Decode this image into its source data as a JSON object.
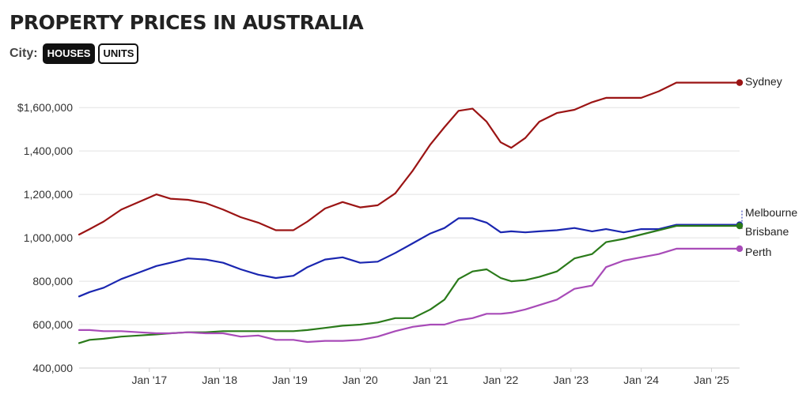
{
  "header": {
    "title": "PROPERTY PRICES IN AUSTRALIA",
    "filter_label": "City:",
    "buttons": [
      {
        "label": "HOUSES",
        "active": true
      },
      {
        "label": "UNITS",
        "active": false
      }
    ]
  },
  "chart_data": {
    "type": "line",
    "title": "PROPERTY PRICES IN AUSTRALIA",
    "xlabel": "",
    "ylabel": "",
    "ylim": [
      400000,
      1750000
    ],
    "y_ticks": [
      400000,
      600000,
      800000,
      1000000,
      1200000,
      1400000,
      1600000
    ],
    "y_tick_labels": [
      "400,000",
      "600,000",
      "800,000",
      "1,000,000",
      "1,200,000",
      "1,400,000",
      "$1,600,000"
    ],
    "x_ticks": [
      2017,
      2018,
      2019,
      2020,
      2021,
      2022,
      2023,
      2024,
      2025
    ],
    "x_tick_labels": [
      "Jan '17",
      "Jan '18",
      "Jan '19",
      "Jan '20",
      "Jan '21",
      "Jan '22",
      "Jan '23",
      "Jan '24",
      "Jan '25"
    ],
    "grid": true,
    "x": [
      2016.0,
      2016.15,
      2016.35,
      2016.6,
      2016.85,
      2017.1,
      2017.3,
      2017.55,
      2017.8,
      2018.05,
      2018.3,
      2018.55,
      2018.8,
      2019.05,
      2019.25,
      2019.5,
      2019.75,
      2020.0,
      2020.25,
      2020.5,
      2020.75,
      2021.0,
      2021.2,
      2021.4,
      2021.6,
      2021.8,
      2022.0,
      2022.15,
      2022.35,
      2022.55,
      2022.8,
      2023.05,
      2023.3,
      2023.5,
      2023.75,
      2024.0,
      2024.25,
      2024.5,
      2024.75,
      2025.0,
      2025.25,
      2025.4
    ],
    "series": [
      {
        "name": "Sydney",
        "color": "#9b1414",
        "values": [
          1015000,
          1040000,
          1075000,
          1130000,
          1165000,
          1200000,
          1180000,
          1175000,
          1160000,
          1130000,
          1095000,
          1070000,
          1035000,
          1035000,
          1075000,
          1135000,
          1165000,
          1140000,
          1150000,
          1205000,
          1310000,
          1430000,
          1510000,
          1585000,
          1595000,
          1535000,
          1440000,
          1415000,
          1460000,
          1535000,
          1575000,
          1590000,
          1625000,
          1645000,
          1645000,
          1645000,
          1675000,
          1715000,
          1715000,
          1715000,
          1715000,
          1715000
        ]
      },
      {
        "name": "Melbourne",
        "color": "#1a26b0",
        "values": [
          730000,
          750000,
          770000,
          810000,
          840000,
          870000,
          885000,
          905000,
          900000,
          885000,
          855000,
          830000,
          815000,
          825000,
          865000,
          900000,
          910000,
          885000,
          890000,
          930000,
          975000,
          1020000,
          1045000,
          1090000,
          1090000,
          1070000,
          1025000,
          1030000,
          1025000,
          1030000,
          1035000,
          1045000,
          1030000,
          1040000,
          1025000,
          1040000,
          1040000,
          1060000,
          1060000,
          1060000,
          1060000,
          1060000
        ]
      },
      {
        "name": "Brisbane",
        "color": "#2a7a1a",
        "values": [
          515000,
          530000,
          535000,
          545000,
          550000,
          555000,
          560000,
          565000,
          565000,
          570000,
          570000,
          570000,
          570000,
          570000,
          575000,
          585000,
          595000,
          600000,
          610000,
          630000,
          630000,
          670000,
          715000,
          810000,
          845000,
          855000,
          815000,
          800000,
          805000,
          820000,
          845000,
          905000,
          925000,
          980000,
          995000,
          1015000,
          1035000,
          1055000,
          1055000,
          1055000,
          1055000,
          1055000
        ]
      },
      {
        "name": "Perth",
        "color": "#a84bb8",
        "values": [
          575000,
          575000,
          570000,
          570000,
          565000,
          560000,
          560000,
          565000,
          560000,
          560000,
          545000,
          550000,
          530000,
          530000,
          520000,
          525000,
          525000,
          530000,
          545000,
          570000,
          590000,
          600000,
          600000,
          620000,
          630000,
          650000,
          650000,
          655000,
          670000,
          690000,
          715000,
          765000,
          780000,
          865000,
          895000,
          910000,
          925000,
          950000,
          950000,
          950000,
          950000,
          950000
        ]
      }
    ],
    "end_labels": [
      "Sydney",
      "Melbourne",
      "Brisbane",
      "Perth"
    ],
    "legend": "end-of-line labels, right"
  }
}
